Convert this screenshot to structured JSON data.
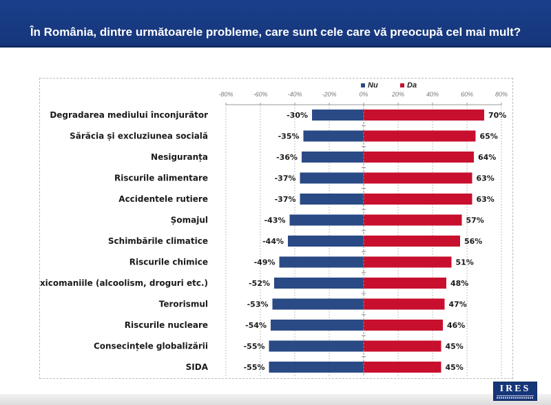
{
  "header": {
    "title": "În România, dintre următoarele probleme, care sunt cele care vă preocupă cel mai mult?"
  },
  "logo": {
    "text": "IRES"
  },
  "colors": {
    "nu": "#2a4a85",
    "da": "#c8102e",
    "header": "#1b3f8c"
  },
  "chart_data": {
    "type": "bar",
    "orientation": "horizontal",
    "stacked": "diverging",
    "title": "În România, dintre următoarele probleme, care sunt cele care vă preocupă cel mai mult?",
    "categories": [
      "Degradarea mediului înconjurător",
      "Sărăcia și excluziunea socială",
      "Nesiguranța",
      "Riscurile alimentare",
      "Accidentele rutiere",
      "Șomajul",
      "Schimbările climatice",
      "Riscurile chimice",
      "Toxicomaniile (alcoolism, droguri etc.)",
      "Terorismul",
      "Riscurile nucleare",
      "Consecințele globalizării",
      "SIDA"
    ],
    "series": [
      {
        "name": "Nu",
        "values": [
          -30,
          -35,
          -36,
          -37,
          -37,
          -43,
          -44,
          -49,
          -52,
          -53,
          -54,
          -55,
          -55
        ],
        "labels": [
          "-30%",
          "-35%",
          "-36%",
          "-37%",
          "-37%",
          "-43%",
          "-44%",
          "-49%",
          "-52%",
          "-53%",
          "-54%",
          "-55%",
          "-55%"
        ]
      },
      {
        "name": "Da",
        "values": [
          70,
          65,
          64,
          63,
          63,
          57,
          56,
          51,
          48,
          47,
          46,
          45,
          45
        ],
        "labels": [
          "70%",
          "65%",
          "64%",
          "63%",
          "63%",
          "57%",
          "56%",
          "51%",
          "48%",
          "47%",
          "46%",
          "45%",
          "45%"
        ]
      }
    ],
    "xlim": [
      -80,
      80
    ],
    "xticks": [
      -80,
      -60,
      -40,
      -20,
      0,
      20,
      40,
      60,
      80
    ],
    "xtick_labels": [
      "-80%",
      "-60%",
      "-40%",
      "-20%",
      "0%",
      "20%",
      "40%",
      "60%",
      "80%"
    ],
    "grid": true,
    "legend": "top-center",
    "xlabel": "",
    "ylabel": ""
  }
}
